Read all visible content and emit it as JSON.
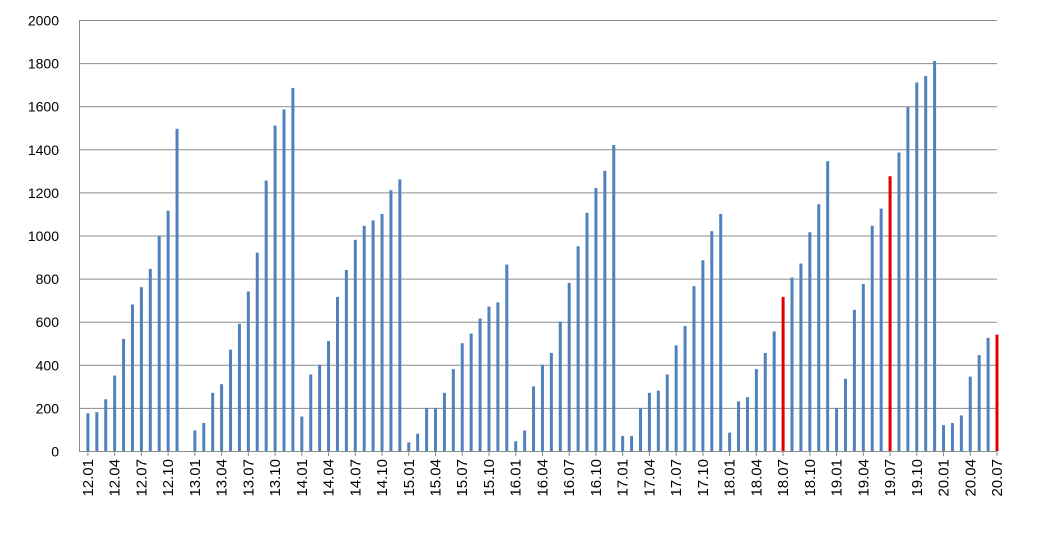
{
  "chart_data": {
    "type": "bar",
    "ylim": [
      0,
      2000
    ],
    "y_ticks": [
      0,
      200,
      400,
      600,
      800,
      1000,
      1200,
      1400,
      1600,
      1800,
      2000
    ],
    "grid": "horizontal",
    "bar_color": "#4F81BD",
    "highlight_color": "#E00000",
    "highlight_categories": [
      "18.07",
      "19.07",
      "20.07"
    ],
    "categories": [
      "12.01",
      "12.02",
      "12.03",
      "12.04",
      "12.05",
      "12.06",
      "12.07",
      "12.08",
      "12.09",
      "12.10",
      "12.11",
      "12.12",
      "13.01",
      "13.02",
      "13.03",
      "13.04",
      "13.05",
      "13.06",
      "13.07",
      "13.08",
      "13.09",
      "13.10",
      "13.11",
      "13.12",
      "14.01",
      "14.02",
      "14.03",
      "14.04",
      "14.05",
      "14.06",
      "14.07",
      "14.08",
      "14.09",
      "14.10",
      "14.11",
      "14.12",
      "15.01",
      "15.02",
      "15.03",
      "15.04",
      "15.05",
      "15.06",
      "15.07",
      "15.08",
      "15.09",
      "15.10",
      "15.11",
      "15.12",
      "16.01",
      "16.02",
      "16.03",
      "16.04",
      "16.05",
      "16.06",
      "16.07",
      "16.08",
      "16.09",
      "16.10",
      "16.11",
      "16.12",
      "17.01",
      "17.02",
      "17.03",
      "17.04",
      "17.05",
      "17.06",
      "17.07",
      "17.08",
      "17.09",
      "17.10",
      "17.11",
      "17.12",
      "18.01",
      "18.02",
      "18.03",
      "18.04",
      "18.05",
      "18.06",
      "18.07",
      "18.08",
      "18.09",
      "18.10",
      "18.11",
      "18.12",
      "19.01",
      "19.02",
      "19.03",
      "19.04",
      "19.05",
      "19.06",
      "19.07",
      "19.08",
      "19.09",
      "19.10",
      "19.11",
      "19.12",
      "20.01",
      "20.02",
      "20.03",
      "20.04",
      "20.05",
      "20.06",
      "20.07"
    ],
    "x_tick_labels": [
      "12.01",
      "12.04",
      "12.07",
      "12.10",
      "13.01",
      "13.04",
      "13.07",
      "13.10",
      "14.01",
      "14.04",
      "14.07",
      "14.10",
      "15.01",
      "15.04",
      "15.07",
      "15.10",
      "16.01",
      "16.04",
      "16.07",
      "16.10",
      "17.01",
      "17.04",
      "17.07",
      "17.10",
      "18.01",
      "18.04",
      "18.07",
      "18.10",
      "19.01",
      "19.04",
      "19.07",
      "19.10",
      "20.01",
      "20.04",
      "20.07"
    ],
    "values": [
      175,
      180,
      240,
      350,
      520,
      680,
      760,
      845,
      1000,
      1115,
      1495,
      0,
      95,
      130,
      270,
      310,
      470,
      590,
      740,
      920,
      1255,
      1510,
      1585,
      1685,
      160,
      355,
      400,
      510,
      715,
      840,
      980,
      1045,
      1070,
      1100,
      1210,
      1260,
      40,
      80,
      200,
      200,
      270,
      380,
      500,
      545,
      615,
      670,
      690,
      865,
      45,
      95,
      300,
      400,
      455,
      600,
      780,
      950,
      1105,
      1220,
      1300,
      1420,
      70,
      70,
      200,
      270,
      280,
      355,
      490,
      580,
      765,
      885,
      1020,
      1100,
      85,
      230,
      250,
      380,
      455,
      555,
      715,
      805,
      870,
      1015,
      1145,
      1345,
      200,
      335,
      655,
      775,
      1045,
      1125,
      1275,
      1385,
      1595,
      1710,
      1740,
      1810,
      120,
      130,
      165,
      345,
      445,
      525,
      540
    ]
  }
}
